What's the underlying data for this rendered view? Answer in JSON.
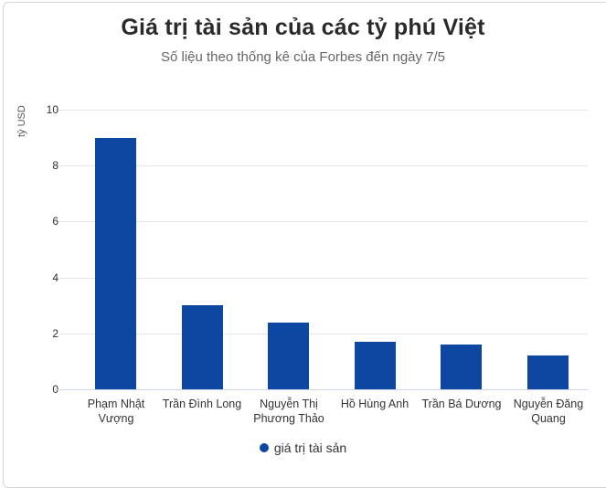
{
  "chart_data": {
    "type": "bar",
    "title": "Giá trị tài sản của các tỷ phú Việt",
    "subtitle": "Số liệu theo thống kê của Forbes đến ngày 7/5",
    "xlabel": "",
    "ylabel": "tỷ USD",
    "ylim": [
      0,
      10
    ],
    "yticks": [
      "0",
      "2",
      "4",
      "6",
      "8",
      "10"
    ],
    "grid": true,
    "legend_position": "bottom",
    "categories": [
      "Phạm Nhật Vượng",
      "Trần Đình Long",
      "Nguyễn Thị Phương Thảo",
      "Hồ Hùng Anh",
      "Trần Bá Dương",
      "Nguyễn Đăng Quang"
    ],
    "category_lines": [
      [
        "Phạm Nhật",
        "Vượng"
      ],
      [
        "Trần Đình Long"
      ],
      [
        "Nguyễn Thị",
        "Phương Thảo"
      ],
      [
        "Hồ Hùng Anh"
      ],
      [
        "Trần Bá Dương"
      ],
      [
        "Nguyễn Đăng",
        "Quang"
      ]
    ],
    "series": [
      {
        "name": "giá trị tài sản",
        "color": "#0d47a1",
        "values": [
          9.0,
          3.0,
          2.4,
          1.7,
          1.6,
          1.2
        ]
      }
    ]
  }
}
